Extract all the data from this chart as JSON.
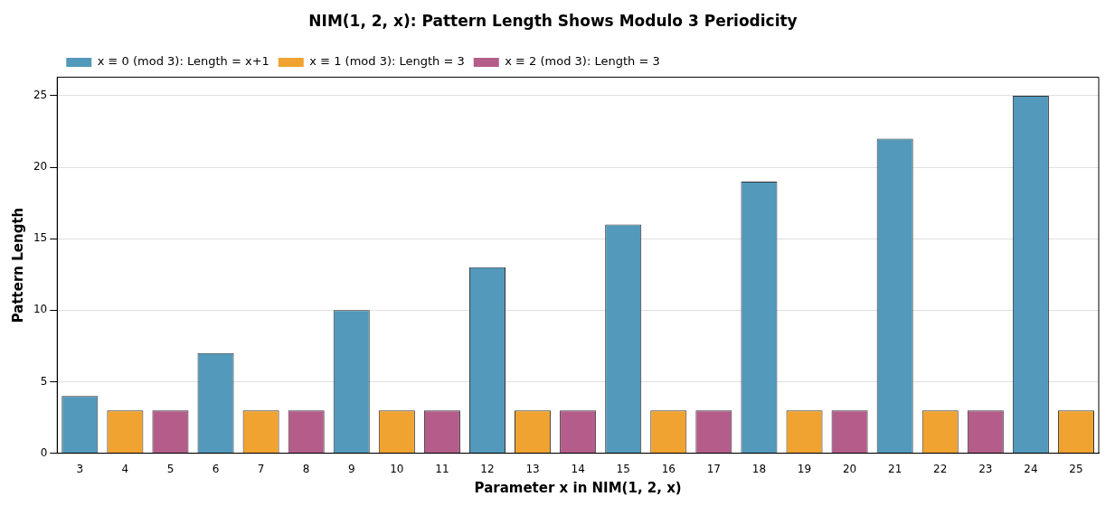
{
  "chart_data": {
    "type": "bar",
    "title": "NIM(1, 2, x): Pattern Length Shows Modulo 3 Periodicity",
    "xlabel": "Parameter x in NIM(1, 2, x)",
    "ylabel": "Pattern Length",
    "categories": [
      "3",
      "4",
      "5",
      "6",
      "7",
      "8",
      "9",
      "10",
      "11",
      "12",
      "13",
      "14",
      "15",
      "16",
      "17",
      "18",
      "19",
      "20",
      "21",
      "22",
      "23",
      "24",
      "25"
    ],
    "series": [
      {
        "name": "x ≡ 0 (mod 3): Length = x+1",
        "color": "#5299bb",
        "values": [
          4,
          null,
          null,
          7,
          null,
          null,
          10,
          null,
          null,
          13,
          null,
          null,
          16,
          null,
          null,
          19,
          null,
          null,
          22,
          null,
          null,
          25,
          null
        ]
      },
      {
        "name": "x ≡ 1 (mod 3): Length = 3",
        "color": "#f0a330",
        "values": [
          null,
          3,
          null,
          null,
          3,
          null,
          null,
          3,
          null,
          null,
          3,
          null,
          null,
          3,
          null,
          null,
          3,
          null,
          null,
          3,
          null,
          null,
          3
        ]
      },
      {
        "name": "x ≡ 2 (mod 3): Length = 3",
        "color": "#b55d8a",
        "values": [
          null,
          null,
          3,
          null,
          null,
          3,
          null,
          null,
          3,
          null,
          null,
          3,
          null,
          null,
          3,
          null,
          null,
          3,
          null,
          null,
          3,
          null,
          null
        ]
      }
    ],
    "ylim": [
      0,
      26.3
    ],
    "yticks": [
      0,
      5,
      10,
      15,
      20,
      25
    ],
    "grid": "y",
    "legend": "top left"
  }
}
